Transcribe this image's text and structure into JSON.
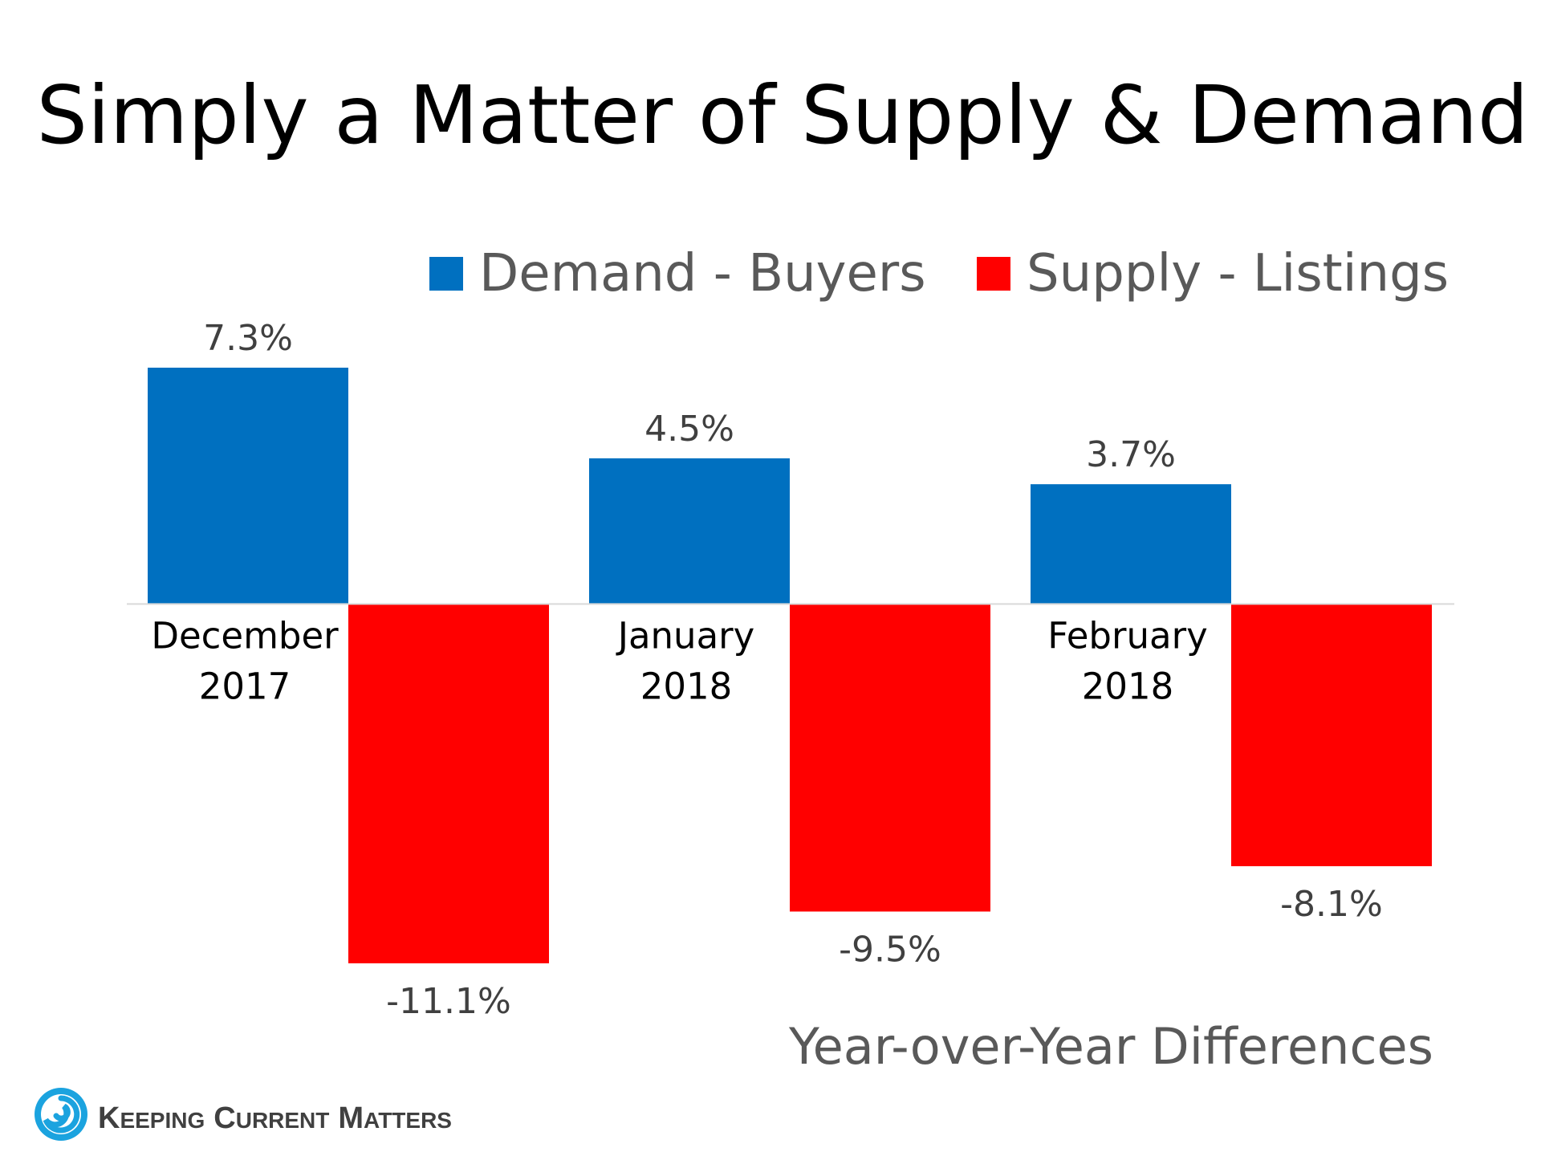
{
  "chart_data": {
    "type": "bar",
    "title": "Simply a Matter of Supply & Demand",
    "subtitle": "Year-over-Year Differences",
    "categories": [
      [
        "December",
        "2017"
      ],
      [
        "January",
        "2018"
      ],
      [
        "February",
        "2018"
      ]
    ],
    "series": [
      {
        "name": "Demand - Buyers",
        "color": "#0070C0",
        "values": [
          7.3,
          4.5,
          3.7
        ],
        "labels": [
          "7.3%",
          "4.5%",
          "3.7%"
        ]
      },
      {
        "name": "Supply - Listings",
        "color": "#FF0000",
        "values": [
          -11.1,
          -9.5,
          -8.1
        ],
        "labels": [
          "-11.1%",
          "-9.5%",
          "-8.1%"
        ]
      }
    ],
    "ylim": [
      -11.1,
      7.3
    ],
    "xlabel": "",
    "ylabel": "",
    "legend": "top-right",
    "grid": false
  },
  "logo": {
    "words": [
      {
        "cap": "K",
        "rest": "EEPING"
      },
      {
        "cap": "C",
        "rest": "URRENT"
      },
      {
        "cap": "M",
        "rest": "ATTERS"
      }
    ],
    "icon": "swirl-logo-icon",
    "color": "#1BA3DF"
  }
}
